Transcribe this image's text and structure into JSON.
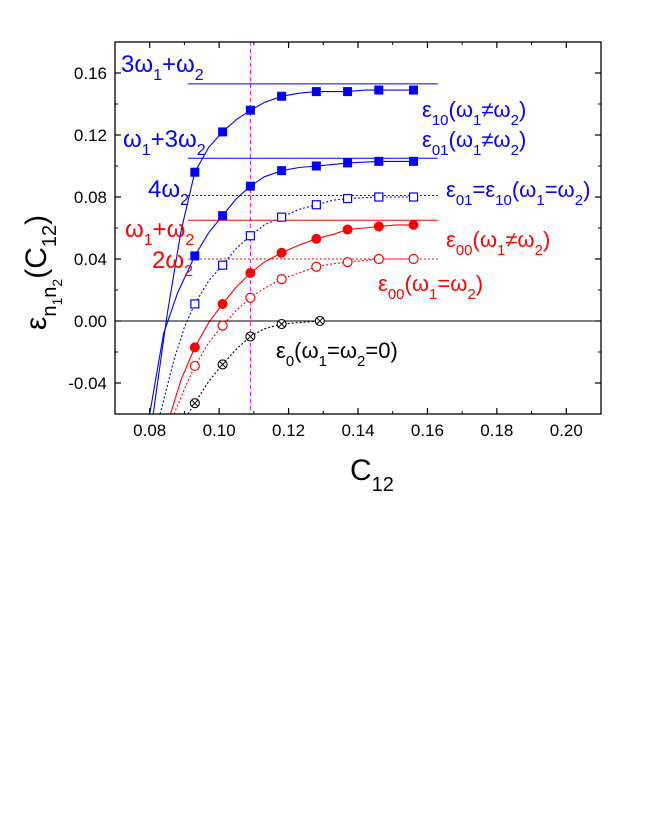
{
  "chart_data": {
    "type": "line",
    "xlabel_main": "C",
    "xlabel_sub": "12",
    "ylabel": {
      "base": "ε",
      "sub1": "n",
      "subsub1": "1",
      "sub2": "n",
      "subsub2": "2",
      "paren_open": "(C",
      "paren_sub": "12",
      "paren_close": ")"
    },
    "xlim": [
      0.07,
      0.21
    ],
    "ylim": [
      -0.06,
      0.18
    ],
    "xticks": [
      "0.08",
      "0.10",
      "0.12",
      "0.14",
      "0.16",
      "0.18",
      "0.20"
    ],
    "yticks": [
      "-0.04",
      "0.00",
      "0.04",
      "0.08",
      "0.12",
      "0.16"
    ],
    "grid": false,
    "vertical_marker_x": 0.109,
    "colors": {
      "blue": "#0000ff",
      "red": "#ff0000",
      "black": "#000000",
      "magenta": "#ff00ff"
    },
    "series": [
      {
        "key": "e10_neq",
        "color": "blue",
        "marker": "filled-square",
        "curve": "solid",
        "x": [
          0.093,
          0.101,
          0.109,
          0.118,
          0.128,
          0.137,
          0.146,
          0.156
        ],
        "y": [
          0.096,
          0.122,
          0.136,
          0.145,
          0.148,
          0.148,
          0.149,
          0.149
        ],
        "curve_x": [
          0.081,
          0.085,
          0.089,
          0.093,
          0.097,
          0.101,
          0.105,
          0.109,
          0.113,
          0.118,
          0.123,
          0.128,
          0.133,
          0.137,
          0.142,
          0.146,
          0.151,
          0.156
        ],
        "curve_y": [
          -0.06,
          0.004,
          0.058,
          0.096,
          0.112,
          0.122,
          0.13,
          0.136,
          0.141,
          0.145,
          0.147,
          0.148,
          0.148,
          0.148,
          0.149,
          0.149,
          0.149,
          0.149
        ]
      },
      {
        "key": "e01_neq",
        "color": "blue",
        "marker": "filled-square",
        "curve": "solid",
        "x": [
          0.093,
          0.101,
          0.109,
          0.118,
          0.128,
          0.137,
          0.146,
          0.156
        ],
        "y": [
          0.042,
          0.068,
          0.087,
          0.097,
          0.1,
          0.102,
          0.103,
          0.103
        ],
        "curve_x": [
          0.08,
          0.084,
          0.088,
          0.093,
          0.097,
          0.101,
          0.105,
          0.109,
          0.113,
          0.118,
          0.123,
          0.128,
          0.133,
          0.137,
          0.146,
          0.156
        ],
        "curve_y": [
          -0.06,
          -0.008,
          0.018,
          0.042,
          0.057,
          0.068,
          0.079,
          0.087,
          0.093,
          0.097,
          0.099,
          0.1,
          0.101,
          0.102,
          0.103,
          0.103
        ]
      },
      {
        "key": "e01_eq",
        "color": "blue",
        "marker": "open-square",
        "curve": "dotted",
        "x": [
          0.093,
          0.101,
          0.109,
          0.118,
          0.128,
          0.137,
          0.146,
          0.156
        ],
        "y": [
          0.011,
          0.036,
          0.055,
          0.067,
          0.075,
          0.079,
          0.08,
          0.08
        ],
        "curve_x": [
          0.083,
          0.087,
          0.09,
          0.093,
          0.097,
          0.101,
          0.105,
          0.109,
          0.113,
          0.118,
          0.123,
          0.128,
          0.133,
          0.137,
          0.146,
          0.156
        ],
        "curve_y": [
          -0.06,
          -0.025,
          -0.004,
          0.011,
          0.026,
          0.036,
          0.047,
          0.055,
          0.062,
          0.067,
          0.072,
          0.075,
          0.078,
          0.079,
          0.08,
          0.08
        ]
      },
      {
        "key": "e00_neq",
        "color": "red",
        "marker": "filled-circle",
        "curve": "solid",
        "x": [
          0.093,
          0.101,
          0.109,
          0.118,
          0.128,
          0.137,
          0.146,
          0.156
        ],
        "y": [
          -0.017,
          0.011,
          0.031,
          0.044,
          0.053,
          0.059,
          0.061,
          0.062
        ],
        "curve_x": [
          0.086,
          0.089,
          0.093,
          0.097,
          0.101,
          0.105,
          0.109,
          0.113,
          0.118,
          0.123,
          0.128,
          0.133,
          0.137,
          0.142,
          0.146,
          0.151,
          0.156
        ],
        "curve_y": [
          -0.06,
          -0.038,
          -0.017,
          -0.001,
          0.011,
          0.022,
          0.031,
          0.038,
          0.044,
          0.049,
          0.053,
          0.056,
          0.059,
          0.06,
          0.061,
          0.062,
          0.062
        ]
      },
      {
        "key": "e00_eq",
        "color": "red",
        "marker": "open-circle",
        "curve": "dotted",
        "x": [
          0.093,
          0.101,
          0.109,
          0.118,
          0.128,
          0.137,
          0.146,
          0.156
        ],
        "y": [
          -0.029,
          -0.003,
          0.015,
          0.027,
          0.035,
          0.038,
          0.04,
          0.04
        ],
        "curve_x": [
          0.087,
          0.09,
          0.093,
          0.097,
          0.101,
          0.105,
          0.109,
          0.113,
          0.118,
          0.123,
          0.128,
          0.133,
          0.137,
          0.146,
          0.156
        ],
        "curve_y": [
          -0.06,
          -0.044,
          -0.029,
          -0.014,
          -0.003,
          0.007,
          0.015,
          0.021,
          0.027,
          0.031,
          0.035,
          0.037,
          0.038,
          0.04,
          0.04
        ]
      },
      {
        "key": "e0_zero",
        "color": "black",
        "marker": "crossed-circle",
        "curve": "dotted",
        "x": [
          0.093,
          0.101,
          0.109,
          0.118,
          0.129
        ],
        "y": [
          -0.053,
          -0.028,
          -0.01,
          -0.002,
          0.0
        ],
        "curve_x": [
          0.091,
          0.093,
          0.097,
          0.101,
          0.105,
          0.109,
          0.113,
          0.118,
          0.123,
          0.129
        ],
        "curve_y": [
          -0.06,
          -0.053,
          -0.039,
          -0.028,
          -0.018,
          -0.01,
          -0.005,
          -0.002,
          -0.001,
          0.0
        ]
      }
    ],
    "reference_lines": [
      {
        "key": "3w1_w2",
        "y": 0.153,
        "x": [
          0.091,
          0.163
        ],
        "color": "blue",
        "style": "solid"
      },
      {
        "key": "w1_3w2",
        "y": 0.105,
        "x": [
          0.091,
          0.163
        ],
        "color": "blue",
        "style": "solid"
      },
      {
        "key": "4w2",
        "y": 0.081,
        "x": [
          0.091,
          0.163
        ],
        "color": "blue",
        "style": "dotted"
      },
      {
        "key": "w1_w2",
        "y": 0.065,
        "x": [
          0.091,
          0.163
        ],
        "color": "red",
        "style": "solid"
      },
      {
        "key": "2w2",
        "y": 0.04,
        "x": [
          0.091,
          0.163
        ],
        "color": "red",
        "style": "dotted"
      },
      {
        "key": "zero",
        "y": 0.0,
        "x": [
          0.07,
          0.21
        ],
        "color": "black",
        "style": "solid"
      }
    ],
    "annotations": {
      "left": [
        {
          "key": "3w1_w2",
          "color": "blue",
          "parts": [
            "3ω",
            "1",
            "+ω",
            "2"
          ]
        },
        {
          "key": "w1_3w2",
          "color": "blue",
          "parts": [
            "ω",
            "1",
            "+3ω",
            "2"
          ]
        },
        {
          "key": "4w2",
          "color": "blue",
          "parts": [
            "4ω",
            "2"
          ]
        },
        {
          "key": "w1_w2",
          "color": "red",
          "parts": [
            "ω",
            "1",
            "+ω",
            "2"
          ]
        },
        {
          "key": "2w2",
          "color": "red",
          "parts": [
            "2ω",
            "2"
          ]
        }
      ],
      "right": [
        {
          "key": "e10_neq",
          "color": "blue",
          "parts": [
            "ε",
            "10",
            "(ω",
            "1",
            "≠ω",
            "2",
            ")"
          ]
        },
        {
          "key": "e01_neq",
          "color": "blue",
          "parts": [
            "ε",
            "01",
            "(ω",
            "1",
            "≠ω",
            "2",
            ")"
          ]
        },
        {
          "key": "e01_eq",
          "color": "blue",
          "parts": [
            "ε",
            "01",
            "=ε",
            "10",
            "(ω",
            "1",
            "=ω",
            "2",
            ")"
          ]
        },
        {
          "key": "e00_neq",
          "color": "red",
          "parts": [
            "ε",
            "00",
            "(ω",
            "1",
            "≠ω",
            "2",
            ")"
          ]
        },
        {
          "key": "e00_eq",
          "color": "red",
          "parts": [
            "ε",
            "00",
            "(ω",
            "1",
            "=ω",
            "2",
            ")"
          ]
        },
        {
          "key": "e0_zero",
          "color": "black",
          "parts": [
            "ε",
            "0",
            "(ω",
            "1",
            "=ω",
            "2",
            "=0)"
          ]
        }
      ]
    }
  }
}
